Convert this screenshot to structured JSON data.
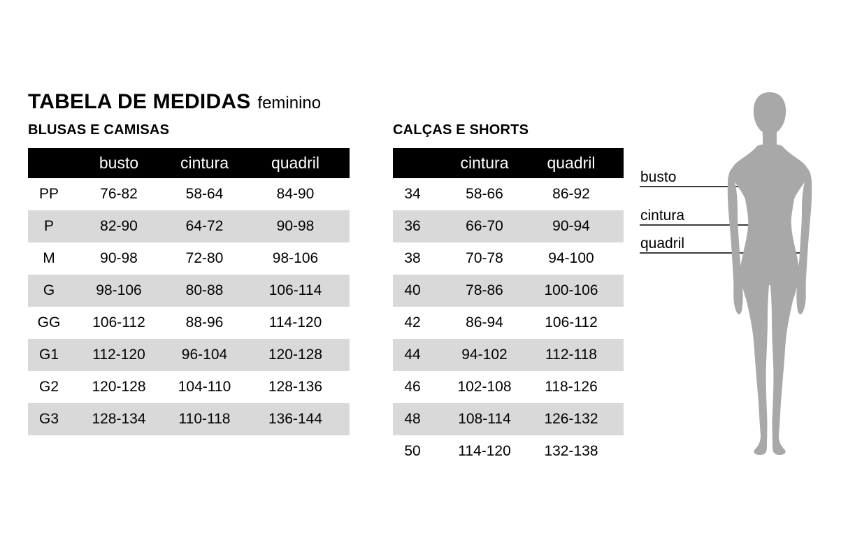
{
  "page": {
    "title": "TABELA DE MEDIDAS",
    "title_qualifier": "feminino"
  },
  "tables": [
    {
      "heading": "BLUSAS E CAMISAS",
      "columns": [
        "",
        "busto",
        "cintura",
        "quadril"
      ],
      "rows": [
        [
          "PP",
          "76-82",
          "58-64",
          "84-90"
        ],
        [
          "P",
          "82-90",
          "64-72",
          "90-98"
        ],
        [
          "M",
          "90-98",
          "72-80",
          "98-106"
        ],
        [
          "G",
          "98-106",
          "80-88",
          "106-114"
        ],
        [
          "GG",
          "106-112",
          "88-96",
          "114-120"
        ],
        [
          "G1",
          "112-120",
          "96-104",
          "120-128"
        ],
        [
          "G2",
          "120-128",
          "104-110",
          "128-136"
        ],
        [
          "G3",
          "128-134",
          "110-118",
          "136-144"
        ]
      ]
    },
    {
      "heading": "CALÇAS E SHORTS",
      "columns": [
        "",
        "cintura",
        "quadril"
      ],
      "rows": [
        [
          "34",
          "58-66",
          "86-92"
        ],
        [
          "36",
          "66-70",
          "90-94"
        ],
        [
          "38",
          "70-78",
          "94-100"
        ],
        [
          "40",
          "78-86",
          "100-106"
        ],
        [
          "42",
          "86-94",
          "106-112"
        ],
        [
          "44",
          "94-102",
          "112-118"
        ],
        [
          "46",
          "102-108",
          "118-126"
        ],
        [
          "48",
          "108-114",
          "126-132"
        ],
        [
          "50",
          "114-120",
          "132-138"
        ]
      ]
    }
  ],
  "figure": {
    "labels": [
      {
        "text": "busto"
      },
      {
        "text": "cintura"
      },
      {
        "text": "quadril"
      }
    ]
  },
  "colors": {
    "header_bg": "#000000",
    "header_text": "#ffffff",
    "stripe": "#d9d9d9",
    "text": "#000000",
    "silhouette": "#a8a8a8",
    "measure_line": "#3d3d3d"
  }
}
